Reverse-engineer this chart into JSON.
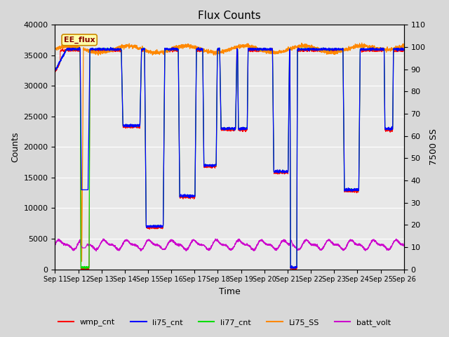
{
  "title": "Flux Counts",
  "xlabel": "Time",
  "ylabel_left": "Counts",
  "ylabel_right": "7500 SS",
  "annotation": "EE_flux",
  "ylim_left": [
    0,
    40000
  ],
  "ylim_right": [
    0,
    110
  ],
  "xtick_labels": [
    "Sep 11",
    "Sep 12",
    "Sep 13",
    "Sep 14",
    "Sep 15",
    "Sep 16",
    "Sep 17",
    "Sep 18",
    "Sep 19",
    "Sep 20",
    "Sep 21",
    "Sep 22",
    "Sep 23",
    "Sep 24",
    "Sep 25",
    "Sep 26"
  ],
  "colors": {
    "wmp_cnt": "#ff0000",
    "li75_cnt": "#0000ff",
    "li77_cnt": "#00dd00",
    "Li75_SS": "#ff8800",
    "batt_volt": "#cc00cc"
  },
  "background_color": "#e8e8e8",
  "grid_color": "#ffffff",
  "yticks_left": [
    0,
    5000,
    10000,
    15000,
    20000,
    25000,
    30000,
    35000,
    40000
  ],
  "yticks_right": [
    0,
    10,
    20,
    30,
    40,
    50,
    60,
    70,
    80,
    90,
    100,
    110
  ],
  "figsize": [
    6.4,
    4.8
  ],
  "dpi": 100
}
